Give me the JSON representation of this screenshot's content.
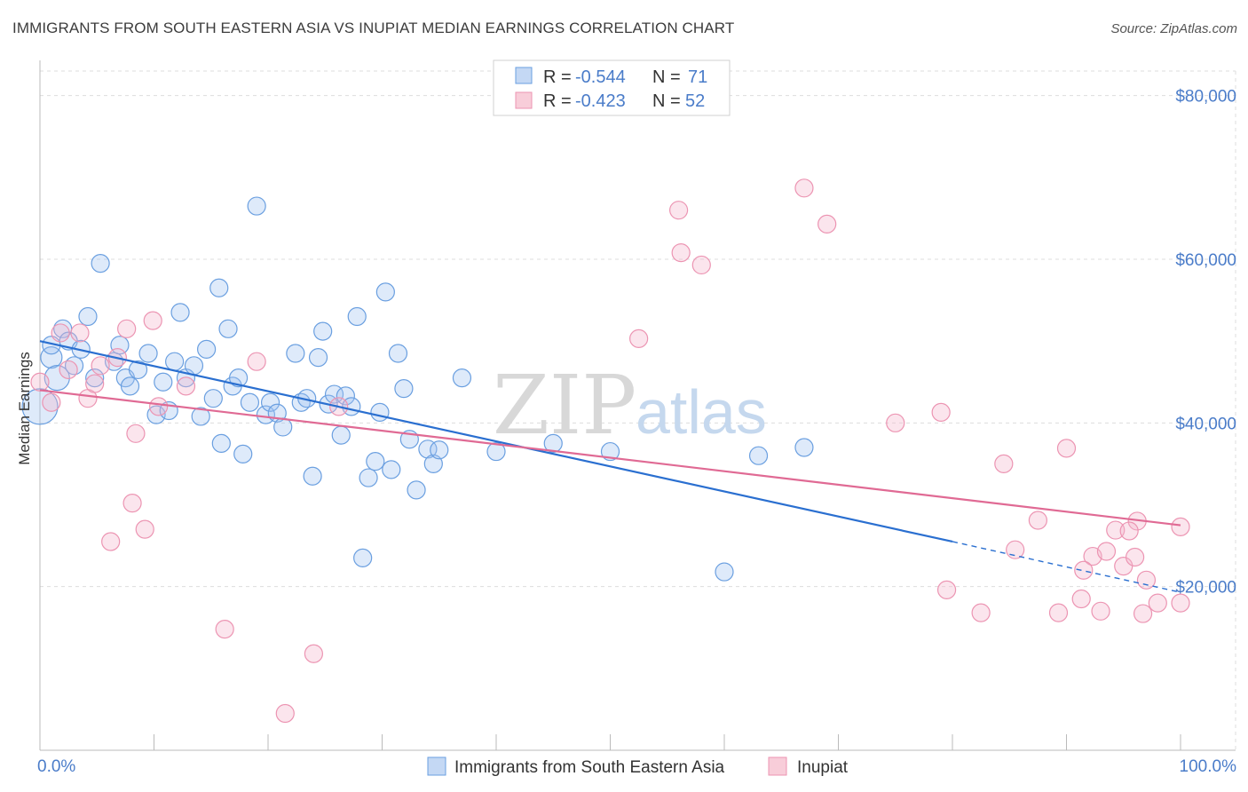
{
  "title": "IMMIGRANTS FROM SOUTH EASTERN ASIA VS INUPIAT MEDIAN EARNINGS CORRELATION CHART",
  "source": "Source: ZipAtlas.com",
  "watermark": {
    "zip": "ZIP",
    "atlas": "atlas"
  },
  "legend": {
    "r_label": "R =",
    "n_label": "N =",
    "entries": [
      {
        "r": "-0.544",
        "n": "71"
      },
      {
        "r": "-0.423",
        "n": "52"
      }
    ]
  },
  "chart_data": {
    "type": "scatter",
    "title": "IMMIGRANTS FROM SOUTH EASTERN ASIA VS INUPIAT MEDIAN EARNINGS CORRELATION CHART",
    "xlabel": "",
    "ylabel": "Median Earnings",
    "xlim": [
      0,
      100
    ],
    "ylim": [
      0,
      83000
    ],
    "x_tick_labels": [
      "0.0%",
      "100.0%"
    ],
    "y_ticks": [
      20000,
      40000,
      60000,
      80000
    ],
    "y_tick_labels": [
      "$20,000",
      "$40,000",
      "$60,000",
      "$80,000"
    ],
    "grid": true,
    "legend_position": "top-center",
    "colors": {
      "blue": "#6a9fe0",
      "blue_line": "#2a6fd0",
      "pink": "#ec94b2",
      "pink_line": "#e06a94"
    },
    "series": [
      {
        "name": "Immigrants from South Eastern Asia",
        "color": "#6a9fe0",
        "trend": {
          "x0": 0,
          "y0": 50000,
          "x1": 80,
          "y1": 25500,
          "dash_to": 100,
          "dash_y": 19300
        },
        "points": [
          [
            0,
            42000
          ],
          [
            1,
            48000
          ],
          [
            1.5,
            45500
          ],
          [
            2,
            51500
          ],
          [
            2.5,
            50000
          ],
          [
            3,
            47000
          ],
          [
            3.6,
            49000
          ],
          [
            4.2,
            53000
          ],
          [
            4.8,
            45500
          ],
          [
            5.3,
            59500
          ],
          [
            6.5,
            47500
          ],
          [
            7,
            49500
          ],
          [
            7.5,
            45500
          ],
          [
            7.9,
            44500
          ],
          [
            8.6,
            46500
          ],
          [
            9.5,
            48500
          ],
          [
            10.2,
            41000
          ],
          [
            10.8,
            45000
          ],
          [
            11.3,
            41500
          ],
          [
            11.8,
            47500
          ],
          [
            12.3,
            53500
          ],
          [
            12.8,
            45500
          ],
          [
            13.5,
            47000
          ],
          [
            14.1,
            40800
          ],
          [
            14.6,
            49000
          ],
          [
            15.2,
            43000
          ],
          [
            15.7,
            56500
          ],
          [
            15.9,
            37500
          ],
          [
            16.5,
            51500
          ],
          [
            16.9,
            44500
          ],
          [
            17.4,
            45500
          ],
          [
            17.8,
            36200
          ],
          [
            18.4,
            42500
          ],
          [
            19,
            66500
          ],
          [
            19.8,
            41000
          ],
          [
            20.2,
            42500
          ],
          [
            20.8,
            41200
          ],
          [
            21.3,
            39500
          ],
          [
            22.4,
            48500
          ],
          [
            22.9,
            42500
          ],
          [
            23.4,
            43000
          ],
          [
            23.9,
            33500
          ],
          [
            24.4,
            48000
          ],
          [
            24.8,
            51200
          ],
          [
            25.3,
            42300
          ],
          [
            25.8,
            43500
          ],
          [
            26.4,
            38500
          ],
          [
            26.8,
            43300
          ],
          [
            27.3,
            42000
          ],
          [
            27.8,
            53000
          ],
          [
            28.3,
            23500
          ],
          [
            28.8,
            33300
          ],
          [
            29.4,
            35300
          ],
          [
            29.8,
            41300
          ],
          [
            30.3,
            56000
          ],
          [
            30.8,
            34300
          ],
          [
            31.4,
            48500
          ],
          [
            31.9,
            44200
          ],
          [
            32.4,
            38000
          ],
          [
            33,
            31800
          ],
          [
            34,
            36800
          ],
          [
            34.5,
            35000
          ],
          [
            35,
            36700
          ],
          [
            37,
            45500
          ],
          [
            50,
            36500
          ],
          [
            60,
            21800
          ],
          [
            67,
            37000
          ],
          [
            63,
            36000
          ],
          [
            45,
            37500
          ],
          [
            40,
            36500
          ],
          [
            1,
            49500
          ]
        ]
      },
      {
        "name": "Inupiat",
        "color": "#ec94b2",
        "trend": {
          "x0": 0,
          "y0": 44000,
          "x1": 100,
          "y1": 27500
        },
        "points": [
          [
            0,
            45000
          ],
          [
            1,
            42500
          ],
          [
            1.8,
            51000
          ],
          [
            2.5,
            46500
          ],
          [
            3.5,
            51000
          ],
          [
            4.2,
            43000
          ],
          [
            4.8,
            44800
          ],
          [
            5.3,
            47000
          ],
          [
            6.2,
            25500
          ],
          [
            6.8,
            48000
          ],
          [
            7.6,
            51500
          ],
          [
            8.1,
            30200
          ],
          [
            8.4,
            38700
          ],
          [
            9.2,
            27000
          ],
          [
            9.9,
            52500
          ],
          [
            10.4,
            42000
          ],
          [
            12.8,
            44500
          ],
          [
            16.2,
            14800
          ],
          [
            19,
            47500
          ],
          [
            21.5,
            4500
          ],
          [
            24,
            11800
          ],
          [
            26.2,
            42000
          ],
          [
            52.5,
            50300
          ],
          [
            56,
            66000
          ],
          [
            56.2,
            60800
          ],
          [
            58,
            59300
          ],
          [
            67,
            68700
          ],
          [
            69,
            64300
          ],
          [
            75,
            40000
          ],
          [
            79,
            41300
          ],
          [
            79.5,
            19600
          ],
          [
            82.5,
            16800
          ],
          [
            84.5,
            35000
          ],
          [
            85.5,
            24500
          ],
          [
            87.5,
            28100
          ],
          [
            89.3,
            16800
          ],
          [
            90,
            36900
          ],
          [
            91.3,
            18500
          ],
          [
            92.3,
            23700
          ],
          [
            93,
            17000
          ],
          [
            93.5,
            24300
          ],
          [
            94.3,
            26900
          ],
          [
            95,
            22500
          ],
          [
            96,
            23600
          ],
          [
            96.2,
            28000
          ],
          [
            96.7,
            16700
          ],
          [
            97,
            20800
          ],
          [
            98,
            18000
          ],
          [
            100,
            27300
          ],
          [
            100,
            18000
          ],
          [
            95.5,
            26800
          ],
          [
            91.5,
            22000
          ]
        ]
      }
    ]
  },
  "bottom_legend": [
    "Immigrants from South Eastern Asia",
    "Inupiat"
  ]
}
